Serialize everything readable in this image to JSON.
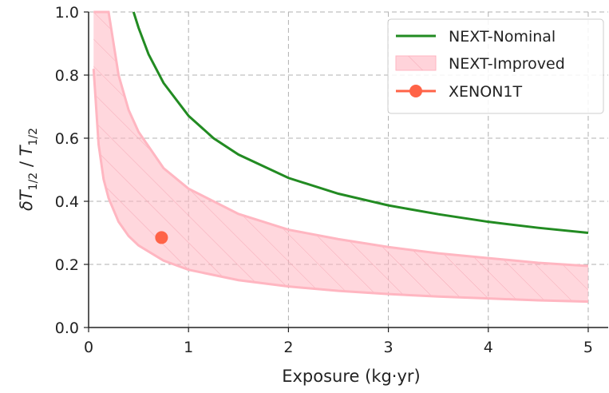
{
  "chart_data": {
    "type": "line",
    "xlabel": "Exposure (kg·yr)",
    "ylabel": "δT1/2 / T1/2",
    "xlim": [
      0,
      5.2
    ],
    "ylim": [
      0,
      1.0
    ],
    "x_ticks": [
      "0",
      "1",
      "2",
      "3",
      "4",
      "5"
    ],
    "y_ticks": [
      "0.0",
      "0.2",
      "0.4",
      "0.6",
      "0.8",
      "1.0"
    ],
    "grid": true,
    "legend_position": "top-right",
    "series": [
      {
        "name": "NEXT-Nominal",
        "kind": "line",
        "color": "#228B22",
        "x": [
          0.45,
          0.5,
          0.6,
          0.75,
          1.0,
          1.25,
          1.5,
          2.0,
          2.5,
          3.0,
          3.5,
          4.0,
          4.5,
          5.0
        ],
        "y": [
          1.0,
          0.95,
          0.866,
          0.775,
          0.671,
          0.6,
          0.548,
          0.474,
          0.424,
          0.387,
          0.359,
          0.335,
          0.316,
          0.3
        ]
      },
      {
        "name": "NEXT-Improved",
        "kind": "band",
        "color": "#FFB6C1",
        "x": [
          0.05,
          0.1,
          0.15,
          0.2,
          0.3,
          0.4,
          0.5,
          0.75,
          1.0,
          1.5,
          2.0,
          2.5,
          3.0,
          3.5,
          4.0,
          4.5,
          5.0
        ],
        "y_upper": [
          1.0,
          1.0,
          1.0,
          1.0,
          0.8,
          0.69,
          0.62,
          0.505,
          0.44,
          0.36,
          0.31,
          0.28,
          0.255,
          0.235,
          0.22,
          0.205,
          0.195
        ],
        "y_lower": [
          0.82,
          0.58,
          0.47,
          0.41,
          0.335,
          0.29,
          0.26,
          0.212,
          0.183,
          0.15,
          0.13,
          0.116,
          0.106,
          0.098,
          0.092,
          0.086,
          0.082
        ]
      },
      {
        "name": "XENON1T",
        "kind": "point",
        "color": "#FF6347",
        "x": [
          0.73
        ],
        "y": [
          0.285
        ]
      }
    ]
  }
}
